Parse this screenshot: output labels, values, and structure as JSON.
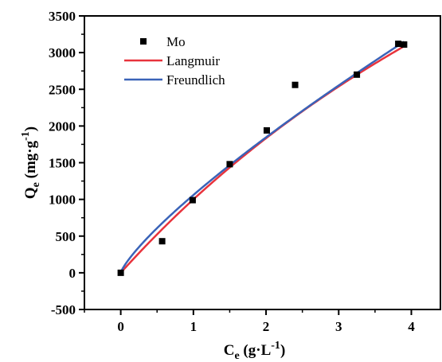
{
  "chart_data": {
    "type": "scatter",
    "xlabel": "Ce (g·L-1)",
    "ylabel": "Qe (mg·g-1)",
    "xlabel_parts": {
      "main": "C",
      "sub": "e",
      "units": " (g·L",
      "sup": "-1",
      "close": ")"
    },
    "ylabel_parts": {
      "main": "Q",
      "sub": "e",
      "units": " (mg·g",
      "sup": "-1",
      "close": ")"
    },
    "xlim": [
      -0.5,
      4.4
    ],
    "ylim": [
      -500,
      3500
    ],
    "xticks": [
      0,
      1,
      2,
      3,
      4
    ],
    "yticks": [
      -500,
      0,
      500,
      1000,
      1500,
      2000,
      2500,
      3000,
      3500
    ],
    "grid": false,
    "legend_position": "top-left",
    "series": [
      {
        "name": "Mo",
        "kind": "points",
        "color": "#000000",
        "x": [
          0.0,
          0.57,
          0.99,
          1.5,
          2.01,
          2.4,
          3.25,
          3.82,
          3.9
        ],
        "y": [
          0,
          430,
          990,
          1480,
          1940,
          2560,
          2700,
          3120,
          3110
        ]
      },
      {
        "name": "Langmuir",
        "kind": "line",
        "color": "#e8333c",
        "qmax": 11000,
        "KL": 0.1
      },
      {
        "name": "Freundlich",
        "kind": "line",
        "color": "#3a63b8",
        "KF": 1060,
        "n_inv": 0.8
      }
    ]
  }
}
